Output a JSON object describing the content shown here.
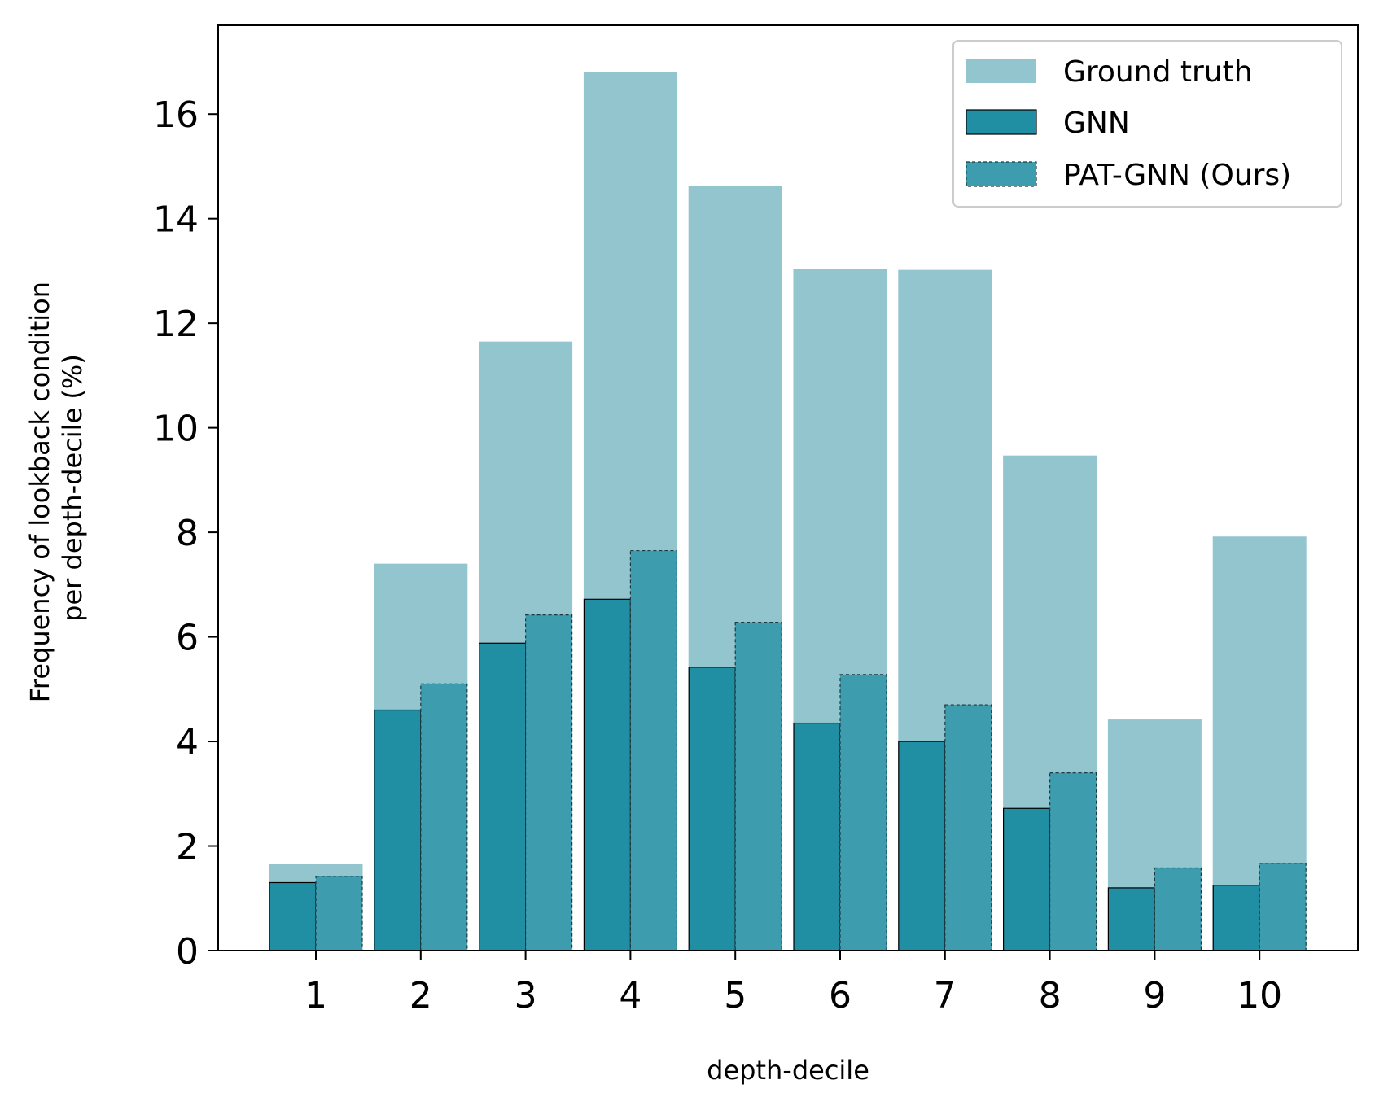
{
  "chart_data": {
    "type": "bar",
    "xlabel": "depth-decile",
    "ylabel_lines": [
      "Frequency of lookback condition",
      "per depth-decile (%)"
    ],
    "categories": [
      "1",
      "2",
      "3",
      "4",
      "5",
      "6",
      "7",
      "8",
      "9",
      "10"
    ],
    "yticks": [
      "0",
      "2",
      "4",
      "6",
      "8",
      "10",
      "12",
      "14",
      "16"
    ],
    "ylim": [
      0,
      17.7
    ],
    "legend_position": "top-right",
    "series": [
      {
        "name": "Ground truth",
        "color": "#93c5cf",
        "values": [
          1.65,
          7.4,
          11.65,
          16.8,
          14.62,
          13.03,
          13.02,
          9.47,
          4.42,
          7.92
        ]
      },
      {
        "name": "GNN",
        "color": "#208ea3",
        "values": [
          1.3,
          4.6,
          5.88,
          6.72,
          5.42,
          4.35,
          4.0,
          2.72,
          1.2,
          1.25
        ]
      },
      {
        "name": "PAT-GNN (Ours)",
        "color": "#3d9cae",
        "values": [
          1.42,
          5.1,
          6.42,
          7.65,
          6.28,
          5.28,
          4.7,
          3.4,
          1.58,
          1.67
        ]
      }
    ]
  }
}
